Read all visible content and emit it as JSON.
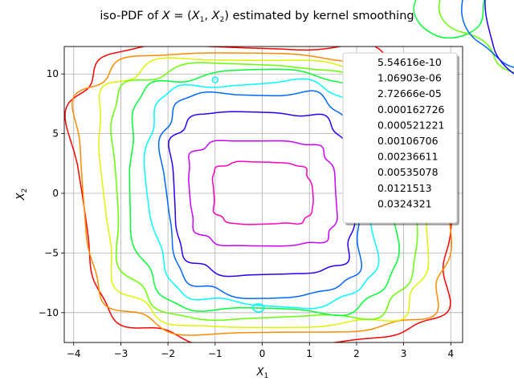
{
  "chart_data": {
    "type": "contour",
    "title": "iso-PDF of X = (X1, X2) estimated by kernel smoothing",
    "title_parts": {
      "prefix": "iso-PDF of ",
      "suffix": " estimated by kernel smoothing"
    },
    "xlabel": "X1",
    "ylabel": "X2",
    "xlim": [
      -4.2,
      4.25
    ],
    "ylim": [
      -12.5,
      12.3
    ],
    "xticks": [
      -4,
      -3,
      -2,
      -1,
      0,
      1,
      2,
      3,
      4
    ],
    "yticks": [
      -10,
      -5,
      0,
      5,
      10
    ],
    "xtick_labels": [
      "−4",
      "−3",
      "−2",
      "−1",
      "0",
      "1",
      "2",
      "3",
      "4"
    ],
    "ytick_labels": [
      "−10",
      "−5",
      "0",
      "5",
      "10"
    ],
    "grid": true,
    "legend_position": "upper-right",
    "levels": [
      {
        "name": "5.54616e-10",
        "color": "#ff0000"
      },
      {
        "name": "1.06903e-06",
        "color": "#ff8c00"
      },
      {
        "name": "2.72666e-05",
        "color": "#ddf500"
      },
      {
        "name": "0.000162726",
        "color": "#66ff00"
      },
      {
        "name": "0.000521221",
        "color": "#00ff33"
      },
      {
        "name": "0.00106706",
        "color": "#00ffff"
      },
      {
        "name": "0.00236611",
        "color": "#0066ff"
      },
      {
        "name": "0.00535078",
        "color": "#2200ff"
      },
      {
        "name": "0.0121513",
        "color": "#c800ff"
      },
      {
        "name": "0.0324321",
        "color": "#ff00c0"
      }
    ]
  }
}
